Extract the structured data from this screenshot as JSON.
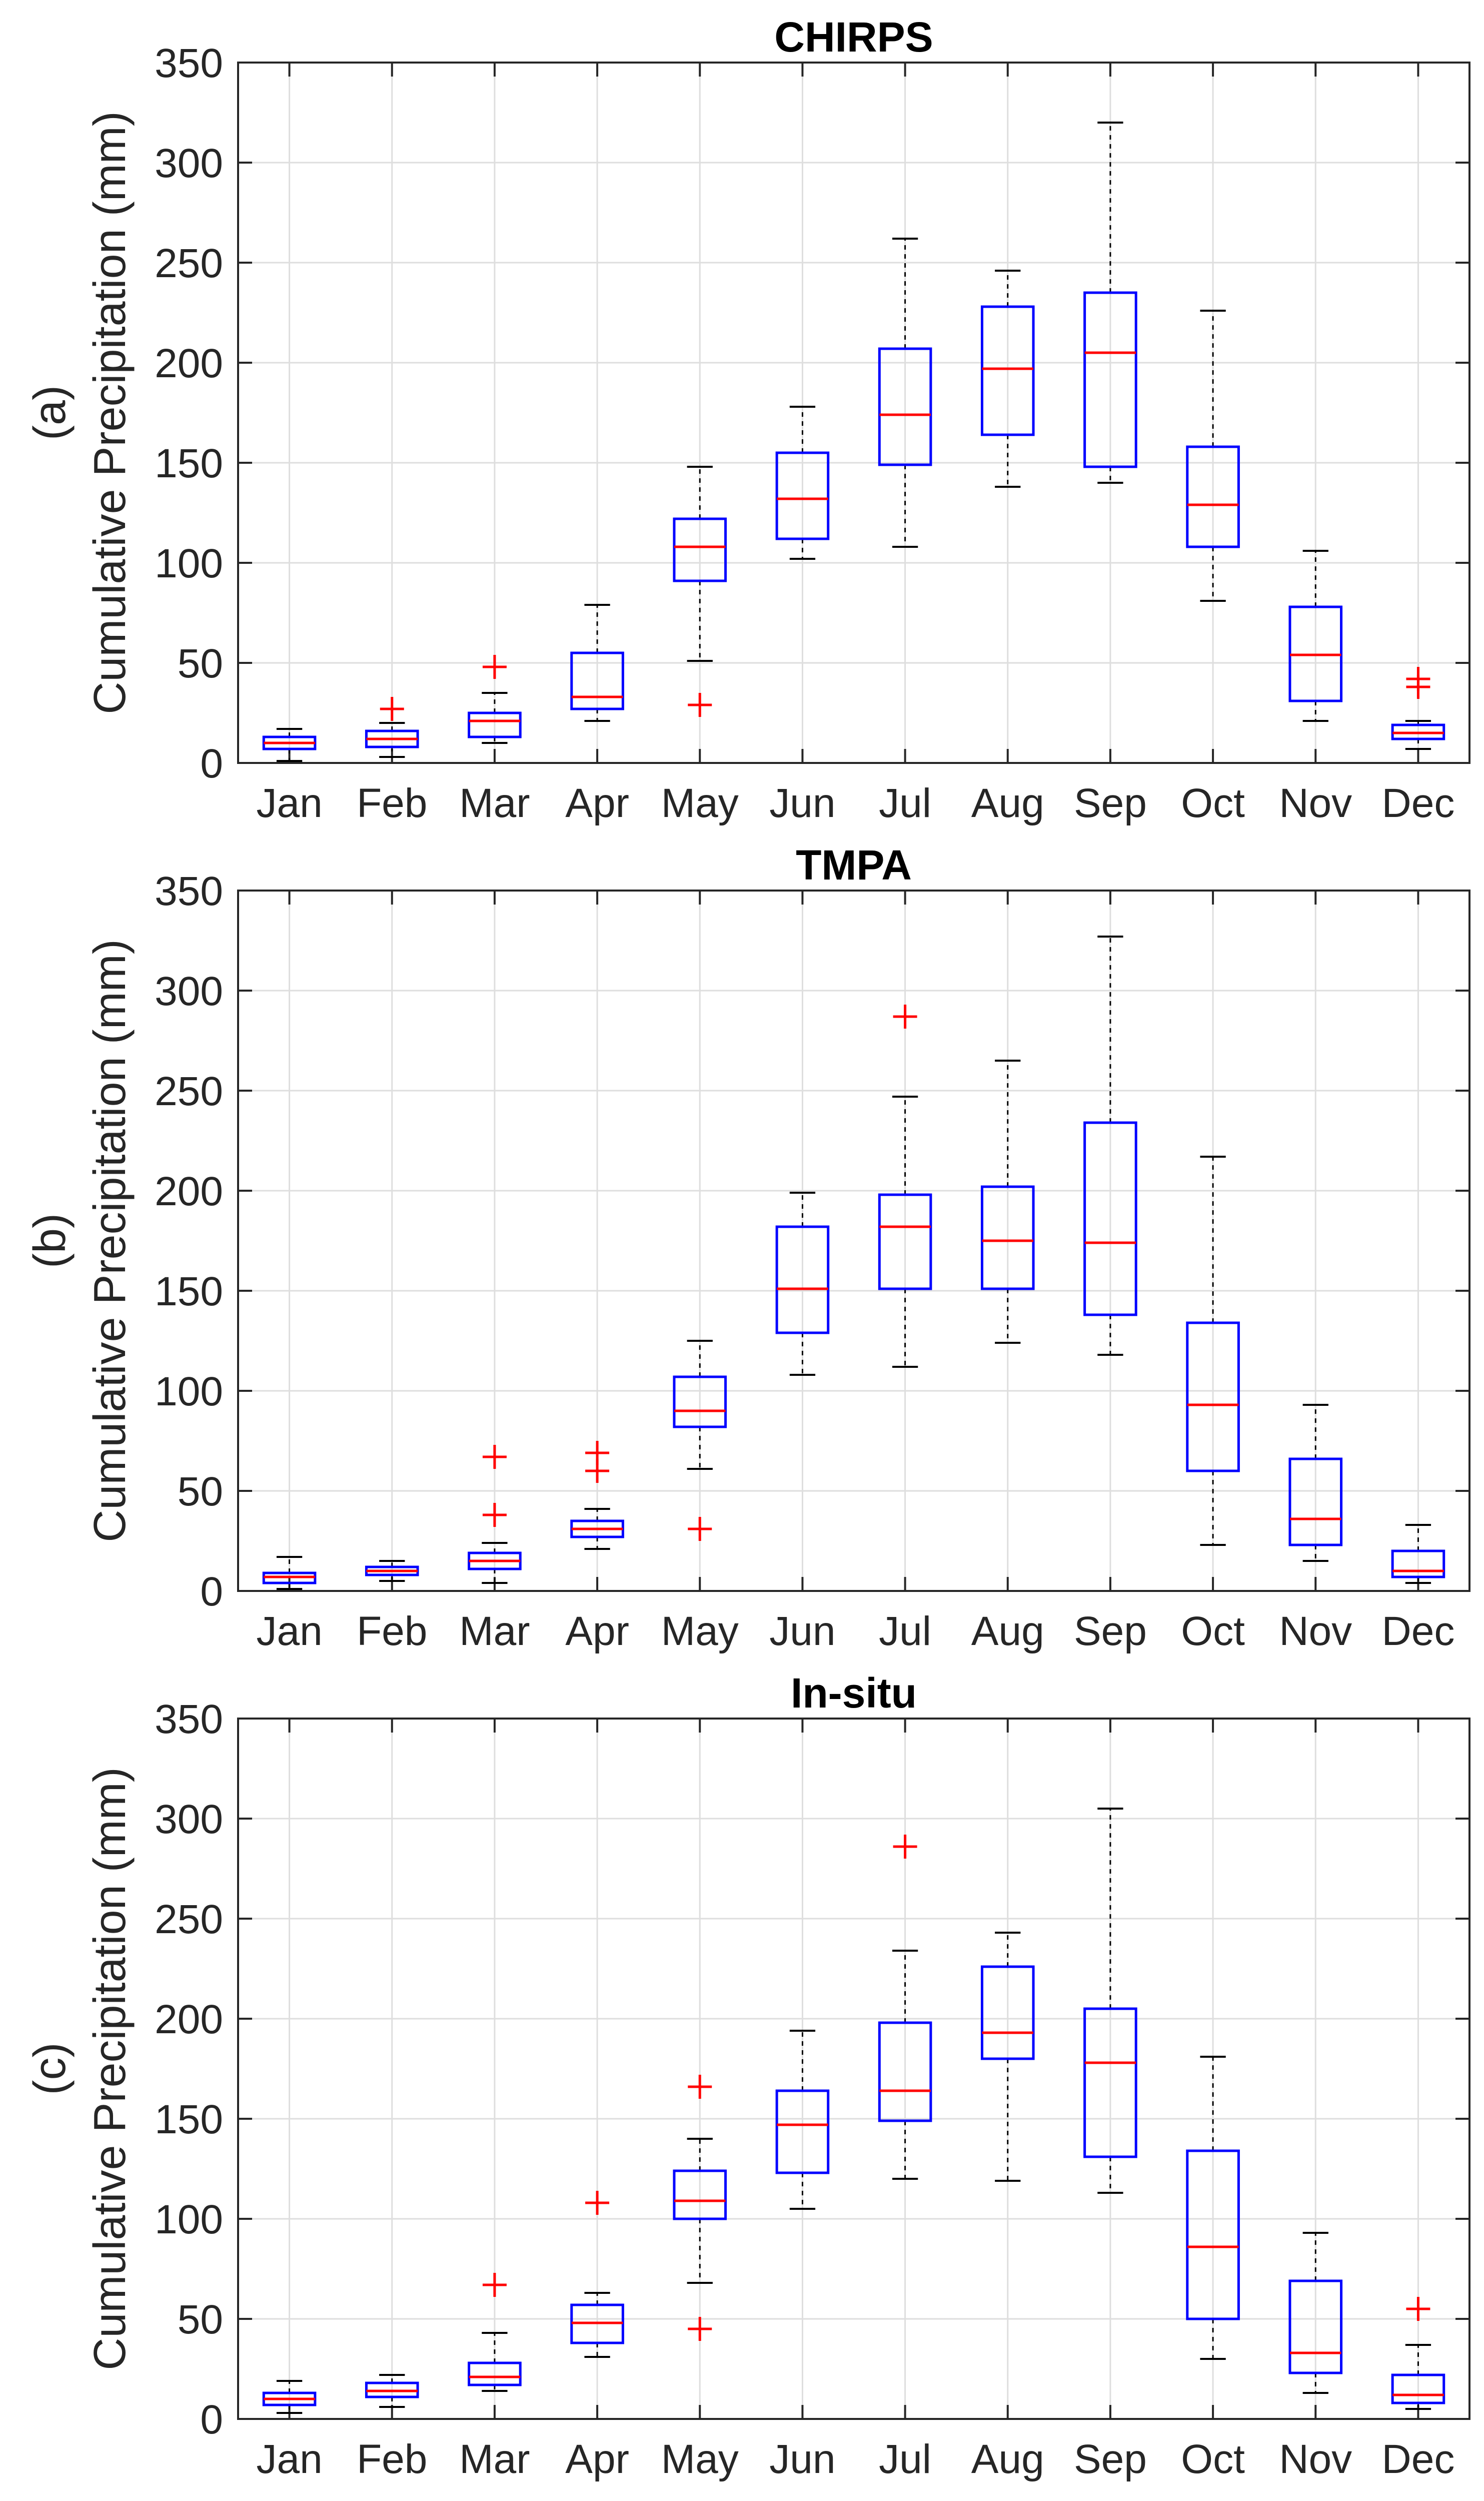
{
  "chart_data": [
    {
      "type": "boxplot",
      "panel_label": "(a)",
      "title": "CHIRPS",
      "ylabel": "Cumulative Precipitation (mm)",
      "xlabel": "",
      "ylim": [
        0,
        350
      ],
      "yticks": [
        0,
        50,
        100,
        150,
        200,
        250,
        300,
        350
      ],
      "grid": true,
      "categories": [
        "Jan",
        "Feb",
        "Mar",
        "Apr",
        "May",
        "Jun",
        "Jul",
        "Aug",
        "Sep",
        "Oct",
        "Nov",
        "Dec"
      ],
      "boxes": [
        {
          "whisker_low": 1,
          "q1": 7,
          "median": 10,
          "q3": 13,
          "whisker_high": 17,
          "outliers": []
        },
        {
          "whisker_low": 3,
          "q1": 8,
          "median": 12,
          "q3": 16,
          "whisker_high": 20,
          "outliers": [
            27
          ]
        },
        {
          "whisker_low": 10,
          "q1": 13,
          "median": 21,
          "q3": 25,
          "whisker_high": 35,
          "outliers": [
            48
          ]
        },
        {
          "whisker_low": 21,
          "q1": 27,
          "median": 33,
          "q3": 55,
          "whisker_high": 79,
          "outliers": []
        },
        {
          "whisker_low": 51,
          "q1": 91,
          "median": 108,
          "q3": 122,
          "whisker_high": 148,
          "outliers": [
            29
          ]
        },
        {
          "whisker_low": 102,
          "q1": 112,
          "median": 132,
          "q3": 155,
          "whisker_high": 178,
          "outliers": []
        },
        {
          "whisker_low": 108,
          "q1": 149,
          "median": 174,
          "q3": 207,
          "whisker_high": 262,
          "outliers": []
        },
        {
          "whisker_low": 138,
          "q1": 164,
          "median": 197,
          "q3": 228,
          "whisker_high": 246,
          "outliers": []
        },
        {
          "whisker_low": 140,
          "q1": 148,
          "median": 205,
          "q3": 235,
          "whisker_high": 320,
          "outliers": []
        },
        {
          "whisker_low": 81,
          "q1": 108,
          "median": 129,
          "q3": 158,
          "whisker_high": 226,
          "outliers": []
        },
        {
          "whisker_low": 21,
          "q1": 31,
          "median": 54,
          "q3": 78,
          "whisker_high": 106,
          "outliers": []
        },
        {
          "whisker_low": 7,
          "q1": 12,
          "median": 15,
          "q3": 19,
          "whisker_high": 21,
          "outliers": [
            38,
            42
          ]
        }
      ]
    },
    {
      "type": "boxplot",
      "panel_label": "(b)",
      "title": "TMPA",
      "ylabel": "Cumulative Precipitation (mm)",
      "xlabel": "",
      "ylim": [
        0,
        350
      ],
      "yticks": [
        0,
        50,
        100,
        150,
        200,
        250,
        300,
        350
      ],
      "grid": true,
      "categories": [
        "Jan",
        "Feb",
        "Mar",
        "Apr",
        "May",
        "Jun",
        "Jul",
        "Aug",
        "Sep",
        "Oct",
        "Nov",
        "Dec"
      ],
      "boxes": [
        {
          "whisker_low": 1,
          "q1": 4,
          "median": 7,
          "q3": 9,
          "whisker_high": 17,
          "outliers": []
        },
        {
          "whisker_low": 5,
          "q1": 8,
          "median": 10,
          "q3": 12,
          "whisker_high": 15,
          "outliers": []
        },
        {
          "whisker_low": 4,
          "q1": 11,
          "median": 15,
          "q3": 19,
          "whisker_high": 24,
          "outliers": [
            38,
            67
          ]
        },
        {
          "whisker_low": 21,
          "q1": 27,
          "median": 31,
          "q3": 35,
          "whisker_high": 41,
          "outliers": [
            60,
            69
          ]
        },
        {
          "whisker_low": 61,
          "q1": 82,
          "median": 90,
          "q3": 107,
          "whisker_high": 125,
          "outliers": [
            31
          ]
        },
        {
          "whisker_low": 108,
          "q1": 129,
          "median": 151,
          "q3": 182,
          "whisker_high": 199,
          "outliers": []
        },
        {
          "whisker_low": 112,
          "q1": 151,
          "median": 182,
          "q3": 198,
          "whisker_high": 247,
          "outliers": [
            287
          ]
        },
        {
          "whisker_low": 124,
          "q1": 151,
          "median": 175,
          "q3": 202,
          "whisker_high": 265,
          "outliers": []
        },
        {
          "whisker_low": 118,
          "q1": 138,
          "median": 174,
          "q3": 234,
          "whisker_high": 327,
          "outliers": []
        },
        {
          "whisker_low": 23,
          "q1": 60,
          "median": 93,
          "q3": 134,
          "whisker_high": 217,
          "outliers": []
        },
        {
          "whisker_low": 15,
          "q1": 23,
          "median": 36,
          "q3": 66,
          "whisker_high": 93,
          "outliers": []
        },
        {
          "whisker_low": 4,
          "q1": 7,
          "median": 10,
          "q3": 20,
          "whisker_high": 33,
          "outliers": []
        }
      ]
    },
    {
      "type": "boxplot",
      "panel_label": "(c)",
      "title": "In-situ",
      "ylabel": "Cumulative Precipitation (mm)",
      "xlabel": "",
      "ylim": [
        0,
        350
      ],
      "yticks": [
        0,
        50,
        100,
        150,
        200,
        250,
        300,
        350
      ],
      "grid": true,
      "categories": [
        "Jan",
        "Feb",
        "Mar",
        "Apr",
        "May",
        "Jun",
        "Jul",
        "Aug",
        "Sep",
        "Oct",
        "Nov",
        "Dec"
      ],
      "boxes": [
        {
          "whisker_low": 3,
          "q1": 7,
          "median": 10,
          "q3": 13,
          "whisker_high": 19,
          "outliers": []
        },
        {
          "whisker_low": 6,
          "q1": 11,
          "median": 14,
          "q3": 18,
          "whisker_high": 22,
          "outliers": []
        },
        {
          "whisker_low": 14,
          "q1": 17,
          "median": 21,
          "q3": 28,
          "whisker_high": 43,
          "outliers": [
            67
          ]
        },
        {
          "whisker_low": 31,
          "q1": 38,
          "median": 48,
          "q3": 57,
          "whisker_high": 63,
          "outliers": [
            108
          ]
        },
        {
          "whisker_low": 68,
          "q1": 100,
          "median": 109,
          "q3": 124,
          "whisker_high": 140,
          "outliers": [
            45,
            166
          ]
        },
        {
          "whisker_low": 105,
          "q1": 123,
          "median": 147,
          "q3": 164,
          "whisker_high": 194,
          "outliers": []
        },
        {
          "whisker_low": 120,
          "q1": 149,
          "median": 164,
          "q3": 198,
          "whisker_high": 234,
          "outliers": [
            286
          ]
        },
        {
          "whisker_low": 119,
          "q1": 180,
          "median": 193,
          "q3": 226,
          "whisker_high": 243,
          "outliers": []
        },
        {
          "whisker_low": 113,
          "q1": 131,
          "median": 178,
          "q3": 205,
          "whisker_high": 305,
          "outliers": []
        },
        {
          "whisker_low": 30,
          "q1": 50,
          "median": 86,
          "q3": 134,
          "whisker_high": 181,
          "outliers": []
        },
        {
          "whisker_low": 13,
          "q1": 23,
          "median": 33,
          "q3": 69,
          "whisker_high": 93,
          "outliers": []
        },
        {
          "whisker_low": 5,
          "q1": 8,
          "median": 12,
          "q3": 22,
          "whisker_high": 37,
          "outliers": [
            55
          ]
        }
      ]
    }
  ],
  "colors": {
    "box": "#0000ff",
    "median": "#ff0000",
    "outlier": "#ff0000",
    "whisker": "#000000",
    "grid": "#dedede",
    "axis": "#262626",
    "background": "#ffffff"
  }
}
